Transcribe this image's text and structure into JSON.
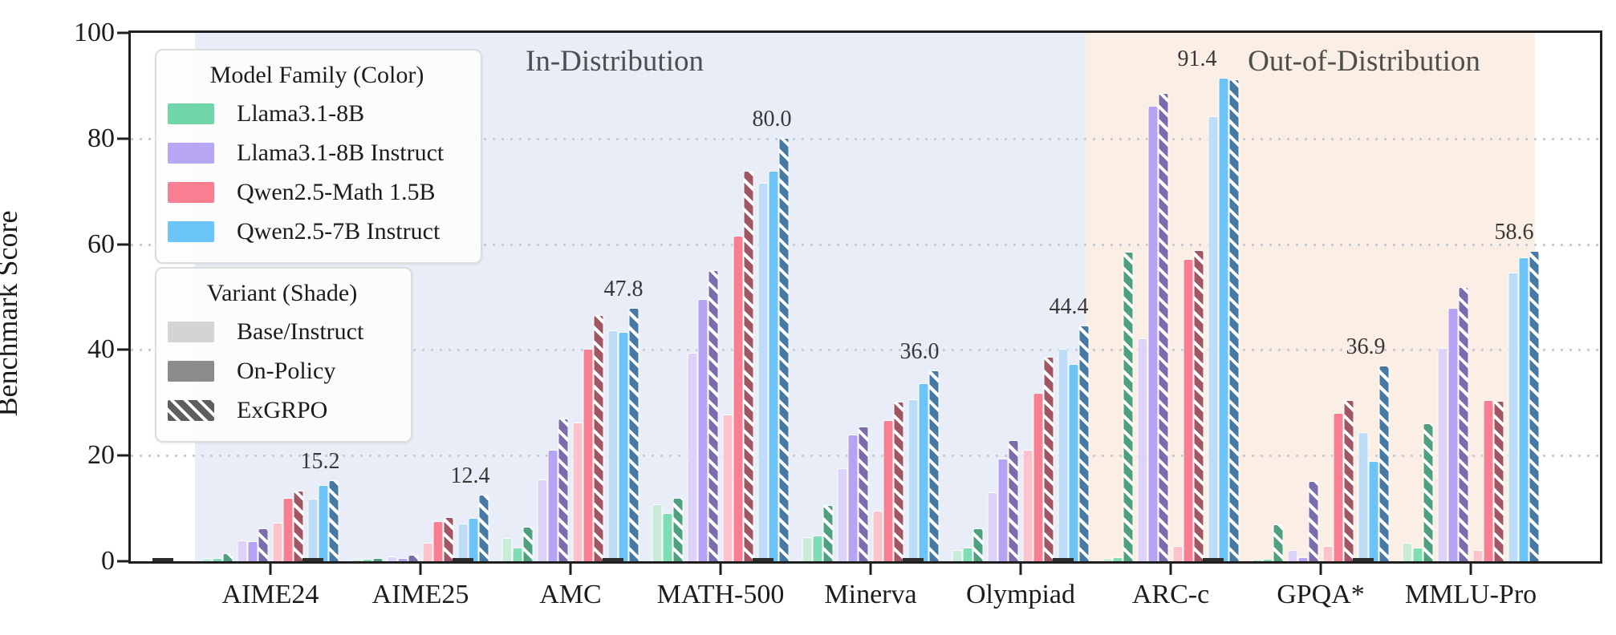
{
  "axes": {
    "y_label": "Benchmark Score",
    "y_ticks": [
      0,
      20,
      40,
      60,
      80,
      100
    ],
    "y_max": 100,
    "grid": "dotted horizontal at 20/40/60/80"
  },
  "regions": [
    {
      "label": "In-Distribution",
      "color": "#e8edf8"
    },
    {
      "label": "Out-of-Distribution",
      "color": "#fbeee4"
    }
  ],
  "legend_family": {
    "title": "Model Family (Color)",
    "items": [
      {
        "label": "Llama3.1-8B",
        "color": "#70d6a9"
      },
      {
        "label": "Llama3.1-8B Instruct",
        "color": "#b7a6f4"
      },
      {
        "label": "Qwen2.5-Math 1.5B",
        "color": "#f87f92"
      },
      {
        "label": "Qwen2.5-7B Instruct",
        "color": "#6cc5f8"
      }
    ]
  },
  "legend_variant": {
    "title": "Variant (Shade)",
    "items": [
      {
        "label": "Base/Instruct",
        "color": "#d4d4d4",
        "hatched": false
      },
      {
        "label": "On-Policy",
        "color": "#8b8b8b",
        "hatched": false
      },
      {
        "label": "ExGRPO",
        "color": "#5e5e5e",
        "hatched": true
      }
    ]
  },
  "chart_data": {
    "type": "bar",
    "title": "",
    "xlabel": "",
    "ylabel": "Benchmark Score",
    "ylim": [
      0,
      100
    ],
    "legend_position": "upper left",
    "categories": [
      "AIME24",
      "AIME25",
      "AMC",
      "MATH-500",
      "Minerva",
      "Olympiad",
      "ARC-c",
      "GPQA*",
      "MMLU-Pro"
    ],
    "category_regions": [
      "in",
      "in",
      "in",
      "in",
      "in",
      "in",
      "out",
      "out",
      "out"
    ],
    "variants": [
      "Base/Instruct",
      "On-Policy",
      "ExGRPO"
    ],
    "families": [
      {
        "name": "Llama3.1-8B",
        "colors": {
          "base": "#c9ecd9",
          "on_policy": "#7eddb3",
          "exgrpo": "#4ea07f"
        },
        "values": {
          "base": [
            0.4,
            0.3,
            4.3,
            10.7,
            4.4,
            1.9,
            0.4,
            0.3,
            3.3
          ],
          "on_policy": [
            0.5,
            0.3,
            2.5,
            8.9,
            4.7,
            2.4,
            0.6,
            0.3,
            2.5
          ],
          "exgrpo": [
            1.3,
            0.5,
            6.3,
            11.9,
            10.4,
            6.1,
            58.5,
            6.8,
            25.9
          ]
        }
      },
      {
        "name": "Llama3.1-8B Instruct",
        "colors": {
          "base": "#ddd3f8",
          "on_policy": "#b7a3f4",
          "exgrpo": "#7b6cae"
        },
        "values": {
          "base": [
            3.8,
            0.7,
            15.3,
            39.3,
            17.5,
            12.9,
            42.0,
            2.0,
            40.2
          ],
          "on_policy": [
            3.6,
            0.4,
            21.0,
            49.5,
            23.9,
            19.3,
            86.1,
            0.6,
            47.8
          ],
          "exgrpo": [
            6.0,
            1.0,
            26.9,
            55.0,
            25.3,
            22.7,
            88.4,
            15.0,
            51.8
          ]
        }
      },
      {
        "name": "Qwen2.5-Math 1.5B",
        "colors": {
          "base": "#fcc3cd",
          "on_policy": "#f87f92",
          "exgrpo": "#a15663"
        },
        "values": {
          "base": [
            7.2,
            3.3,
            26.1,
            27.6,
            9.4,
            20.9,
            2.8,
            2.8,
            1.9
          ],
          "on_policy": [
            11.8,
            7.4,
            40.0,
            61.5,
            26.5,
            31.7,
            57.0,
            27.9,
            30.4
          ],
          "exgrpo": [
            13.2,
            8.2,
            46.4,
            73.8,
            30.0,
            38.6,
            58.7,
            30.4,
            30.2
          ]
        }
      },
      {
        "name": "Qwen2.5-7B Instruct",
        "colors": {
          "base": "#bcdcf8",
          "on_policy": "#6cc3f7",
          "exgrpo": "#4679a4"
        },
        "values": {
          "base": [
            11.7,
            7.0,
            43.5,
            71.5,
            30.5,
            40.0,
            84.1,
            24.3,
            54.5
          ],
          "on_policy": [
            14.2,
            8.0,
            43.2,
            73.8,
            33.5,
            37.2,
            91.4,
            18.8,
            57.4
          ],
          "exgrpo": [
            15.2,
            12.4,
            47.8,
            80.0,
            36.0,
            44.4,
            91.0,
            36.9,
            58.6
          ]
        }
      }
    ],
    "annotations": [
      15.2,
      12.4,
      47.8,
      80.0,
      36.0,
      44.4,
      91.4,
      36.9,
      58.6
    ]
  }
}
